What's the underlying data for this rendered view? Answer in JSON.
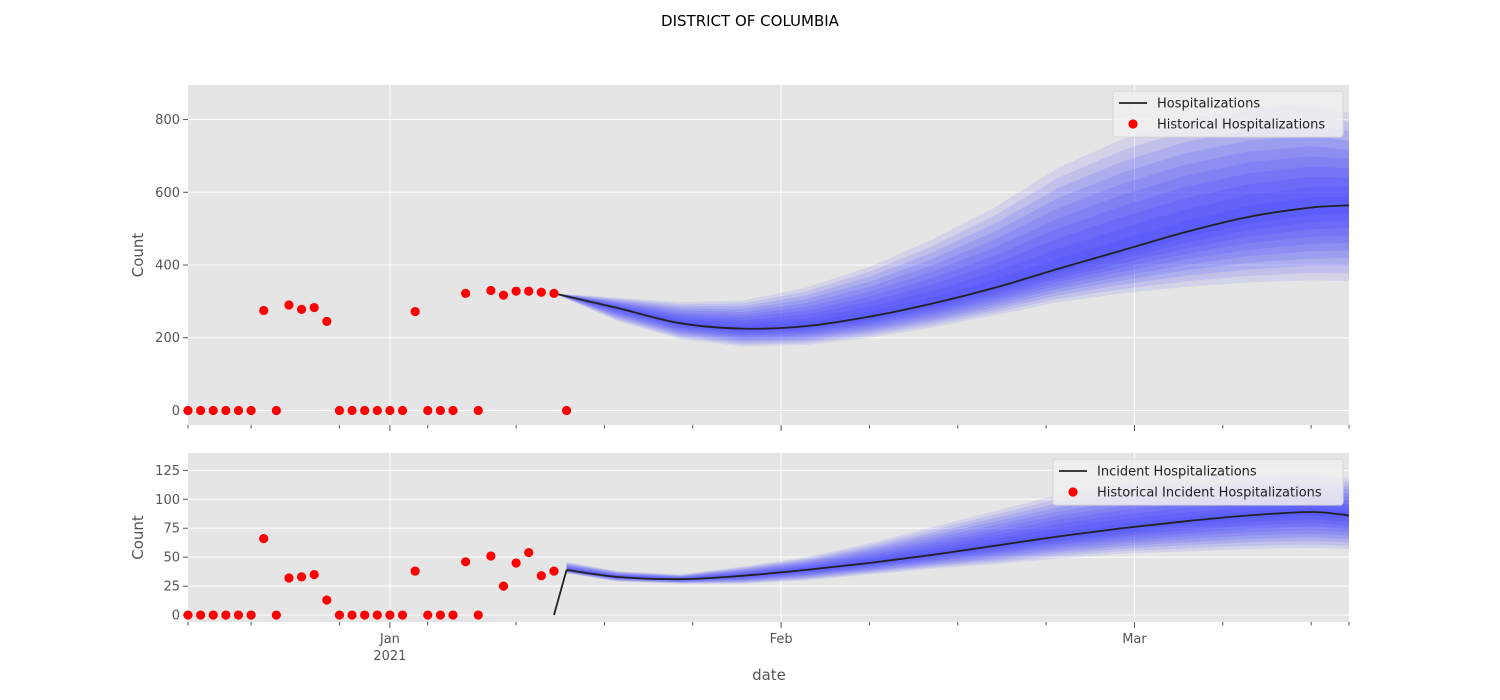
{
  "figure": {
    "title": "DISTRICT OF COLUMBIA",
    "xlabel": "date"
  },
  "chart_data": [
    {
      "type": "line",
      "ylabel": "Count",
      "ylim": [
        -40,
        895
      ],
      "yticks": [
        0,
        200,
        400,
        600,
        800
      ],
      "grid": true,
      "legend_position": "top-right",
      "legend": [
        {
          "label": "Hospitalizations",
          "kind": "line",
          "color": "#222222"
        },
        {
          "label": "Historical Hospitalizations",
          "kind": "marker",
          "color": "#ff0000"
        }
      ],
      "historical": {
        "name": "Historical Hospitalizations",
        "color": "#ff0000",
        "x": [
          "2020-12-16",
          "2020-12-17",
          "2020-12-18",
          "2020-12-19",
          "2020-12-20",
          "2020-12-21",
          "2020-12-22",
          "2020-12-23",
          "2020-12-24",
          "2020-12-25",
          "2020-12-26",
          "2020-12-27",
          "2020-12-28",
          "2020-12-29",
          "2020-12-30",
          "2020-12-31",
          "2021-01-01",
          "2021-01-02",
          "2021-01-03",
          "2021-01-04",
          "2021-01-05",
          "2021-01-06",
          "2021-01-07",
          "2021-01-08",
          "2021-01-09",
          "2021-01-10",
          "2021-01-11",
          "2021-01-12",
          "2021-01-13",
          "2021-01-14",
          "2021-01-15"
        ],
        "y": [
          0,
          0,
          0,
          0,
          0,
          0,
          275,
          0,
          290,
          278,
          283,
          245,
          0,
          0,
          0,
          0,
          0,
          0,
          272,
          0,
          0,
          0,
          322,
          0,
          330,
          317,
          328,
          328,
          325,
          322,
          0
        ]
      },
      "forecast": {
        "name": "Hospitalizations",
        "color": "#222222",
        "band_color": "#4b4bff",
        "x": [
          "2021-01-14",
          "2021-01-19",
          "2021-01-24",
          "2021-01-29",
          "2021-02-03",
          "2021-02-08",
          "2021-02-13",
          "2021-02-18",
          "2021-02-23",
          "2021-02-28",
          "2021-03-05",
          "2021-03-10",
          "2021-03-15",
          "2021-03-18"
        ],
        "median": [
          322,
          282,
          240,
          225,
          232,
          258,
          294,
          338,
          390,
          440,
          490,
          532,
          558,
          564
        ],
        "lower": [
          322,
          246,
          196,
          176,
          180,
          200,
          228,
          262,
          298,
          322,
          340,
          352,
          358,
          356
        ],
        "upper": [
          322,
          310,
          298,
          302,
          338,
          395,
          470,
          560,
          668,
          745,
          800,
          832,
          840,
          818
        ]
      }
    },
    {
      "type": "line",
      "ylabel": "Count",
      "ylim": [
        -6,
        140
      ],
      "yticks": [
        0,
        25,
        50,
        75,
        100,
        125
      ],
      "grid": true,
      "legend_position": "top-right",
      "legend": [
        {
          "label": "Incident Hospitalizations",
          "kind": "line",
          "color": "#222222"
        },
        {
          "label": "Historical Incident Hospitalizations",
          "kind": "marker",
          "color": "#ff0000"
        }
      ],
      "historical": {
        "name": "Historical Incident Hospitalizations",
        "color": "#ff0000",
        "x": [
          "2020-12-16",
          "2020-12-17",
          "2020-12-18",
          "2020-12-19",
          "2020-12-20",
          "2020-12-21",
          "2020-12-22",
          "2020-12-23",
          "2020-12-24",
          "2020-12-25",
          "2020-12-26",
          "2020-12-27",
          "2020-12-28",
          "2020-12-29",
          "2020-12-30",
          "2020-12-31",
          "2021-01-01",
          "2021-01-02",
          "2021-01-03",
          "2021-01-04",
          "2021-01-05",
          "2021-01-06",
          "2021-01-07",
          "2021-01-08",
          "2021-01-09",
          "2021-01-10",
          "2021-01-11",
          "2021-01-12",
          "2021-01-13",
          "2021-01-14"
        ],
        "y": [
          0,
          0,
          0,
          0,
          0,
          0,
          66,
          0,
          32,
          33,
          35,
          13,
          0,
          0,
          0,
          0,
          0,
          0,
          38,
          0,
          0,
          0,
          46,
          0,
          51,
          25,
          45,
          54,
          34,
          38
        ]
      },
      "forecast": {
        "name": "Incident Hospitalizations",
        "color": "#222222",
        "band_color": "#4b4bff",
        "lead_in": {
          "x": [
            "2021-01-14",
            "2021-01-15"
          ],
          "y": [
            0,
            39
          ]
        },
        "x": [
          "2021-01-15",
          "2021-01-19",
          "2021-01-24",
          "2021-01-29",
          "2021-02-03",
          "2021-02-08",
          "2021-02-13",
          "2021-02-18",
          "2021-02-23",
          "2021-02-28",
          "2021-03-05",
          "2021-03-10",
          "2021-03-15",
          "2021-03-18"
        ],
        "median": [
          39,
          33,
          31,
          34,
          39,
          45,
          52,
          60,
          68,
          75,
          81,
          86,
          89,
          86
        ],
        "lower": [
          36,
          29,
          27,
          27,
          30,
          35,
          40,
          44,
          49,
          53,
          55,
          57,
          58,
          57
        ],
        "upper": [
          46,
          38,
          35,
          42,
          50,
          62,
          76,
          90,
          104,
          114,
          119,
          120,
          122,
          118
        ]
      }
    }
  ],
  "xaxis": {
    "start": "2020-12-16",
    "end": "2021-03-18",
    "major_ticks": [
      {
        "date": "2021-01-01",
        "label": "Jan",
        "sublabel": "2021"
      },
      {
        "date": "2021-02-01",
        "label": "Feb",
        "sublabel": ""
      },
      {
        "date": "2021-03-01",
        "label": "Mar",
        "sublabel": ""
      }
    ],
    "minor_ticks": [
      "2020-12-16",
      "2020-12-21",
      "2020-12-28",
      "2021-01-04",
      "2021-01-11",
      "2021-01-18",
      "2021-01-25",
      "2021-02-08",
      "2021-02-15",
      "2021-02-22",
      "2021-03-08",
      "2021-03-15",
      "2021-03-18"
    ]
  },
  "style": {
    "plot_background": "#e5e5e5",
    "grid_color": "#ffffff",
    "legend_background": "#f0f0f0"
  }
}
